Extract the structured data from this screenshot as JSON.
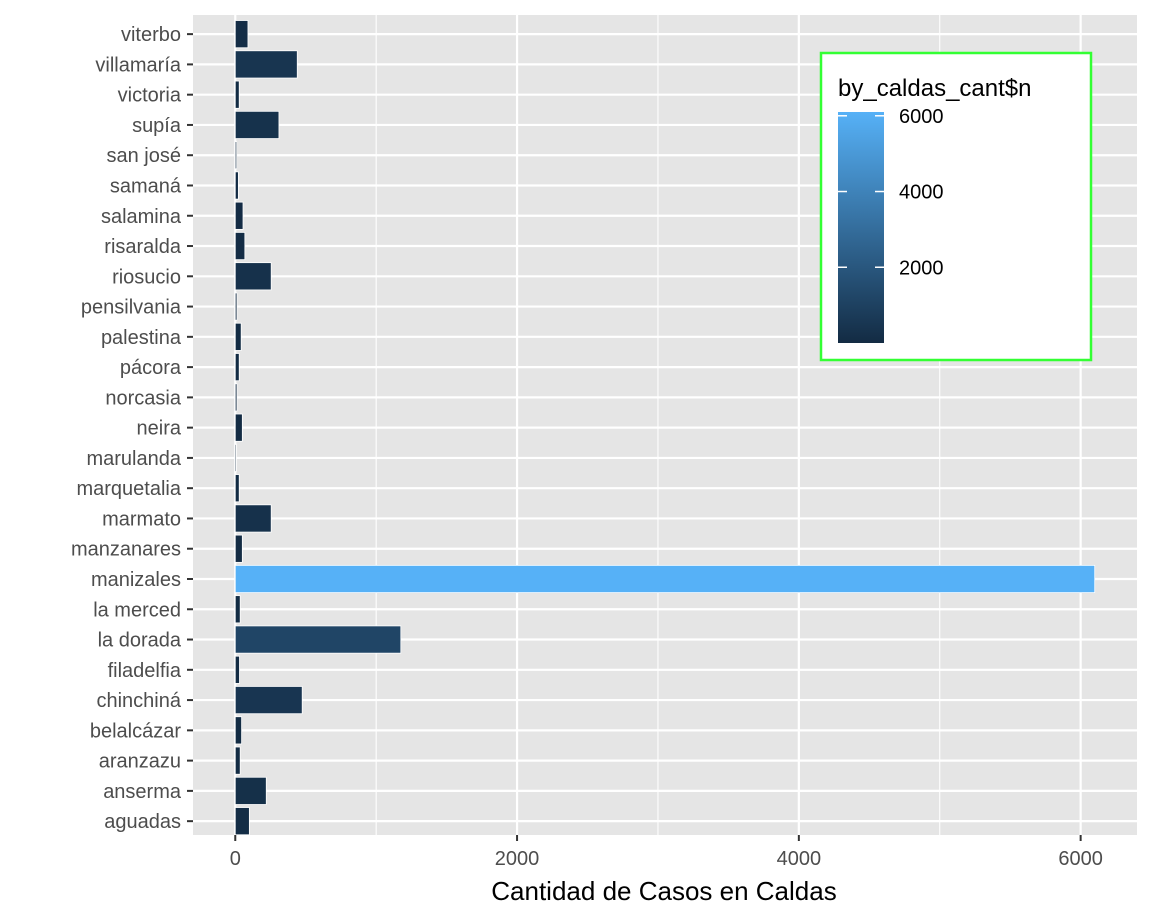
{
  "chart_data": {
    "type": "bar",
    "orientation": "horizontal",
    "xlabel": "Cantidad de Casos en Caldas",
    "ylabel": "",
    "xlim": [
      -300,
      6400
    ],
    "x_ticks": [
      0,
      2000,
      4000,
      6000
    ],
    "x_tick_labels": [
      "0",
      "2000",
      "4000",
      "6000"
    ],
    "grid": true,
    "categories": [
      "aguadas",
      "anserma",
      "aranzazu",
      "belalcázar",
      "chinchiná",
      "filadelfia",
      "la dorada",
      "la merced",
      "manizales",
      "manzanares",
      "marmato",
      "marquetalia",
      "marulanda",
      "neira",
      "norcasia",
      "pácora",
      "palestina",
      "pensilvania",
      "riosucio",
      "risaralda",
      "salamina",
      "samaná",
      "san josé",
      "supía",
      "victoria",
      "villamaría",
      "viterbo"
    ],
    "values": [
      100,
      220,
      35,
      45,
      475,
      30,
      1175,
      35,
      6100,
      50,
      255,
      28,
      8,
      50,
      12,
      28,
      42,
      12,
      255,
      68,
      55,
      22,
      10,
      310,
      28,
      440,
      90
    ],
    "legend": {
      "title": "by_caldas_cant$n",
      "position": "top-right",
      "type": "colorbar",
      "range": [
        0,
        6100
      ],
      "ticks": [
        2000,
        4000,
        6000
      ],
      "tick_labels": [
        "2000",
        "4000",
        "6000"
      ],
      "low_color": "#132B43",
      "high_color": "#56B1F7",
      "frame_color": "#33FF33"
    },
    "colors": {
      "panel_background": "#E5E5E5",
      "grid": "#FFFFFF"
    }
  }
}
